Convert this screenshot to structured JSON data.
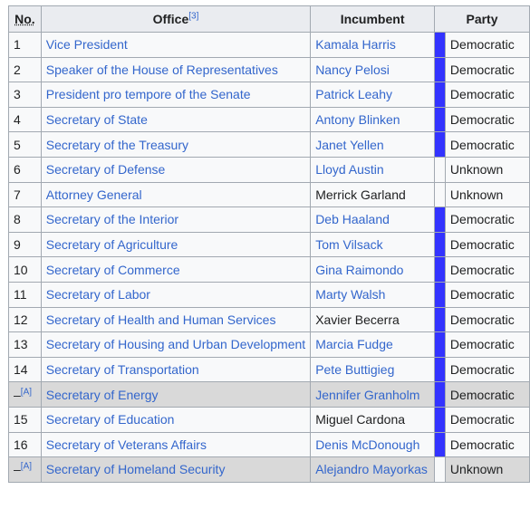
{
  "headers": {
    "no": "No.",
    "office": "Office",
    "office_ref": "[3]",
    "incumbent": "Incumbent",
    "party": "Party"
  },
  "colors": {
    "democratic": "#3333ff",
    "unknown": "#f8f9fa",
    "link": "#3366cc",
    "header_bg": "#eaecf0",
    "row_bg": "#f8f9fa",
    "ineligible_bg": "#d9d9d9"
  },
  "rows": [
    {
      "no": "1",
      "office": "Vice President",
      "incumbent": "Kamala Harris",
      "party": "Democratic"
    },
    {
      "no": "2",
      "office": "Speaker of the House of Representatives",
      "incumbent": "Nancy Pelosi",
      "party": "Democratic"
    },
    {
      "no": "3",
      "office": "President pro tempore of the Senate",
      "incumbent": "Patrick Leahy",
      "party": "Democratic"
    },
    {
      "no": "4",
      "office": "Secretary of State",
      "incumbent": "Antony Blinken",
      "party": "Democratic"
    },
    {
      "no": "5",
      "office": "Secretary of the Treasury",
      "incumbent": "Janet Yellen",
      "party": "Democratic"
    },
    {
      "no": "6",
      "office": "Secretary of Defense",
      "incumbent": "Lloyd Austin",
      "party": "Unknown"
    },
    {
      "no": "7",
      "office": "Attorney General",
      "incumbent": "Merrick Garland",
      "party": "Unknown"
    },
    {
      "no": "8",
      "office": "Secretary of the Interior",
      "incumbent": "Deb Haaland",
      "party": "Democratic"
    },
    {
      "no": "9",
      "office": "Secretary of Agriculture",
      "incumbent": "Tom Vilsack",
      "party": "Democratic"
    },
    {
      "no": "10",
      "office": "Secretary of Commerce",
      "incumbent": "Gina Raimondo",
      "party": "Democratic"
    },
    {
      "no": "11",
      "office": "Secretary of Labor",
      "incumbent": "Marty Walsh",
      "party": "Democratic"
    },
    {
      "no": "12",
      "office": "Secretary of Health and Human Services",
      "incumbent": "Xavier Becerra",
      "party": "Democratic"
    },
    {
      "no": "13",
      "office": "Secretary of Housing and Urban Development",
      "incumbent": "Marcia Fudge",
      "party": "Democratic"
    },
    {
      "no": "14",
      "office": "Secretary of Transportation",
      "incumbent": "Pete Buttigieg",
      "party": "Democratic"
    },
    {
      "no": "–",
      "note": "[A]",
      "office": "Secretary of Energy",
      "incumbent": "Jennifer Granholm",
      "party": "Democratic"
    },
    {
      "no": "15",
      "office": "Secretary of Education",
      "incumbent": "Miguel Cardona",
      "party": "Democratic"
    },
    {
      "no": "16",
      "office": "Secretary of Veterans Affairs",
      "incumbent": "Denis McDonough",
      "party": "Democratic"
    },
    {
      "no": "–",
      "note": "[A]",
      "office": "Secretary of Homeland Security",
      "incumbent": "Alejandro Mayorkas",
      "party": "Unknown"
    }
  ]
}
